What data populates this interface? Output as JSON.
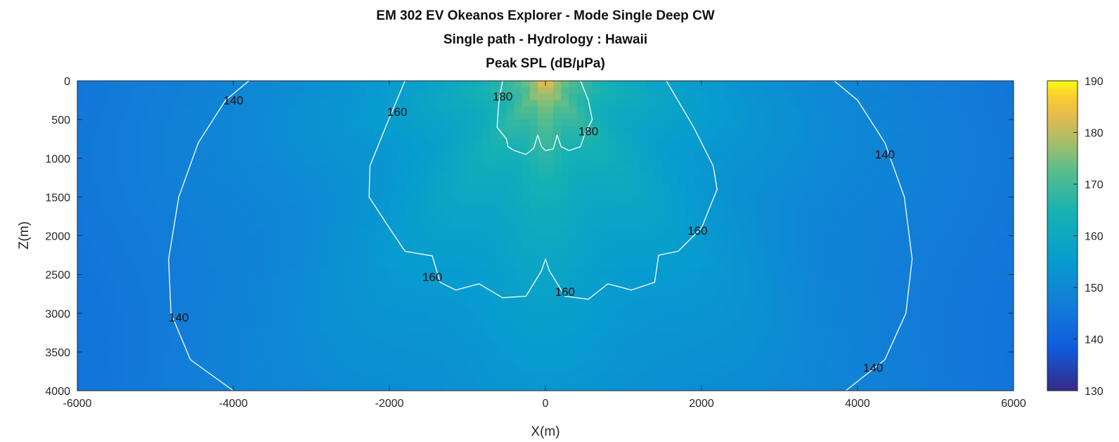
{
  "chart_data": {
    "type": "heatmap",
    "title": [
      "EM 302 EV Okeanos Explorer - Mode Single Deep CW",
      "Single path - Hydrology : Hawaii",
      "Peak SPL (dB/μPa)"
    ],
    "xlabel": "X(m)",
    "ylabel": "Z(m)",
    "xlim": [
      -6000,
      6000
    ],
    "ylim": [
      0,
      4000
    ],
    "y_reversed": true,
    "xticks": [
      -6000,
      -4000,
      -2000,
      0,
      2000,
      4000,
      6000
    ],
    "yticks": [
      0,
      500,
      1000,
      1500,
      2000,
      2500,
      3000,
      3500,
      4000
    ],
    "colormap": "parula",
    "clim": [
      130,
      190
    ],
    "colorbar_ticks": [
      130,
      140,
      150,
      160,
      170,
      180,
      190
    ],
    "source_position": {
      "x": 0,
      "z": 0
    },
    "peak_spl": 190,
    "contours": [
      {
        "level": 140,
        "line_color": "#ffffff",
        "path": [
          [
            -3800,
            0
          ],
          [
            -4100,
            250
          ],
          [
            -4450,
            800
          ],
          [
            -4700,
            1500
          ],
          [
            -4830,
            2300
          ],
          [
            -4800,
            3000
          ],
          [
            -4550,
            3600
          ],
          [
            -4000,
            4000
          ]
        ],
        "labels": [
          {
            "text": "140",
            "x": -4000,
            "z": 250
          },
          {
            "text": "140",
            "x": -4700,
            "z": 3050
          }
        ]
      },
      {
        "level": 140,
        "line_color": "#ffffff",
        "path": [
          [
            3700,
            0
          ],
          [
            4000,
            250
          ],
          [
            4350,
            800
          ],
          [
            4600,
            1500
          ],
          [
            4700,
            2300
          ],
          [
            4620,
            3000
          ],
          [
            4350,
            3600
          ],
          [
            3850,
            4000
          ]
        ],
        "labels": [
          {
            "text": "140",
            "x": 4350,
            "z": 950
          },
          {
            "text": "140",
            "x": 4200,
            "z": 3700
          }
        ]
      },
      {
        "level": 160,
        "line_color": "#ffffff",
        "path": [
          [
            -1800,
            0
          ],
          [
            -2050,
            600
          ],
          [
            -2250,
            1100
          ],
          [
            -2260,
            1500
          ],
          [
            -2000,
            1900
          ],
          [
            -1800,
            2200
          ],
          [
            -1450,
            2260
          ],
          [
            -1350,
            2600
          ],
          [
            -1150,
            2700
          ],
          [
            -850,
            2620
          ],
          [
            -550,
            2800
          ],
          [
            -250,
            2780
          ],
          [
            -50,
            2450
          ],
          [
            0,
            2300
          ],
          [
            50,
            2450
          ],
          [
            250,
            2780
          ],
          [
            550,
            2820
          ],
          [
            800,
            2620
          ],
          [
            1100,
            2700
          ],
          [
            1400,
            2600
          ],
          [
            1450,
            2250
          ],
          [
            1700,
            2200
          ],
          [
            2000,
            1900
          ],
          [
            2200,
            1400
          ],
          [
            2150,
            1100
          ],
          [
            1900,
            600
          ],
          [
            1550,
            0
          ]
        ],
        "labels": [
          {
            "text": "160",
            "x": -1900,
            "z": 400
          },
          {
            "text": "160",
            "x": -1450,
            "z": 2530
          },
          {
            "text": "160",
            "x": 250,
            "z": 2720
          },
          {
            "text": "160",
            "x": 1950,
            "z": 1930
          }
        ]
      },
      {
        "level": 180,
        "line_color": "#ffffff",
        "path": [
          [
            -550,
            0
          ],
          [
            -600,
            300
          ],
          [
            -620,
            600
          ],
          [
            -500,
            750
          ],
          [
            -480,
            850
          ],
          [
            -400,
            900
          ],
          [
            -250,
            950
          ],
          [
            -150,
            870
          ],
          [
            -100,
            700
          ],
          [
            -50,
            850
          ],
          [
            0,
            900
          ],
          [
            100,
            880
          ],
          [
            150,
            700
          ],
          [
            200,
            850
          ],
          [
            300,
            900
          ],
          [
            450,
            850
          ],
          [
            500,
            700
          ],
          [
            600,
            500
          ],
          [
            550,
            250
          ],
          [
            450,
            0
          ]
        ],
        "labels": [
          {
            "text": "180",
            "x": -550,
            "z": 200
          },
          {
            "text": "180",
            "x": 550,
            "z": 650
          }
        ]
      }
    ]
  }
}
